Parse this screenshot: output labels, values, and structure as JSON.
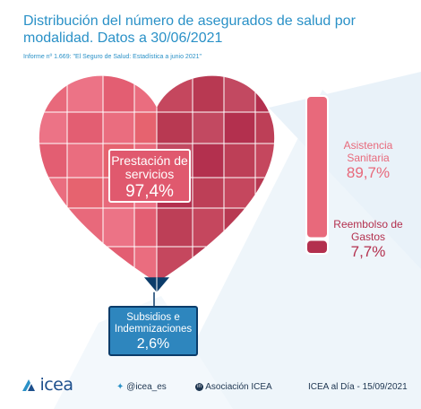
{
  "title": "Distribución del número de asegurados de salud por modalidad. Datos a 30/06/2021",
  "subtitle": "Informe nº 1.669: \"El Seguro de Salud: Estadística a junio 2021\"",
  "chart_data": {
    "type": "pie",
    "title": "Distribución del número de asegurados de salud por modalidad. Datos a 30/06/2021",
    "unit": "%",
    "slices": [
      {
        "name": "Prestación de servicios",
        "value": 97.4,
        "label": "97,4%",
        "color": "#e0596e"
      },
      {
        "name": "Subsidios e Indemnizaciones",
        "value": 2.6,
        "label": "2,6%",
        "color": "#0b3c6a"
      }
    ],
    "breakdown": [
      {
        "name": "Asistencia Sanitaria",
        "value": 89.7,
        "label": "89,7%",
        "color": "#e8697b"
      },
      {
        "name": "Reembolso de Gastos",
        "value": 7.7,
        "label": "7,7%",
        "color": "#b3304e"
      }
    ]
  },
  "footer": {
    "logo": "icea",
    "twitter": "@icea_es",
    "linkedin_icon": "in",
    "linkedin": "Asociación ICEA",
    "date_text": "ICEA al Día - 15/09/2021"
  },
  "colors": {
    "accent": "#2a91c7",
    "heart_light": "#e8697b",
    "heart_dark": "#b3304e",
    "navy": "#0b3c6a"
  }
}
